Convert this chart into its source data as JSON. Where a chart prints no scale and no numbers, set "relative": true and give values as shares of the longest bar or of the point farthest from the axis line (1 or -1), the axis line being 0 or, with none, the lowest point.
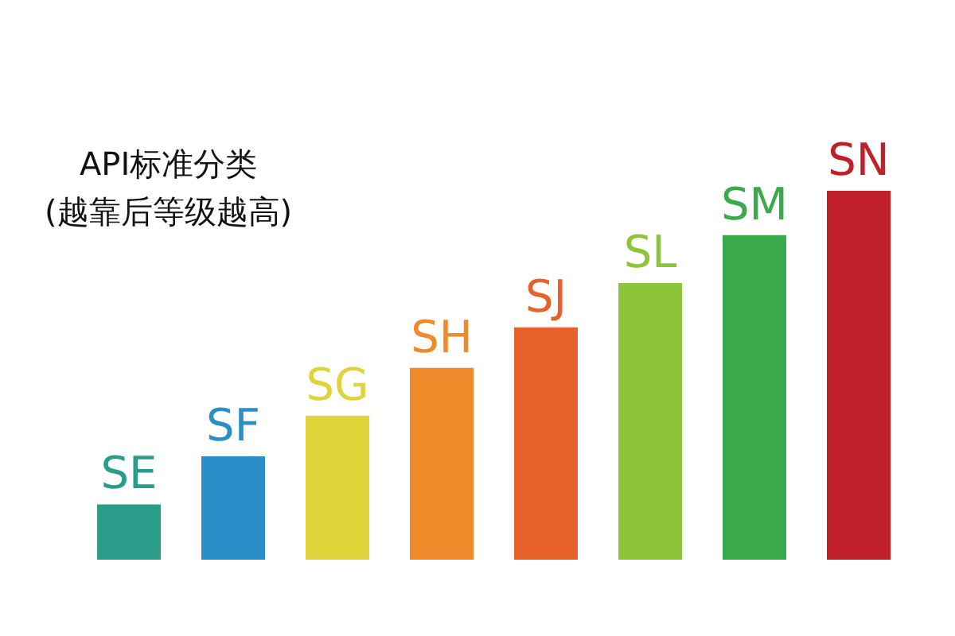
{
  "chart_data": {
    "type": "bar",
    "title": "API标准分类",
    "subtitle": "(越靠后等级越高)",
    "relative": true,
    "categories": [
      "SE",
      "SF",
      "SG",
      "SH",
      "SJ",
      "SL",
      "SM",
      "SN"
    ],
    "values": [
      0.15,
      0.28,
      0.39,
      0.52,
      0.63,
      0.75,
      0.88,
      1
    ],
    "colors": [
      "#2a9d8a",
      "#2a8fc8",
      "#e0d43a",
      "#ef8a2a",
      "#e8602a",
      "#8cc43a",
      "#3aaa4a",
      "#c0202a"
    ],
    "grid": false,
    "legend": false,
    "tick_labels": false
  }
}
